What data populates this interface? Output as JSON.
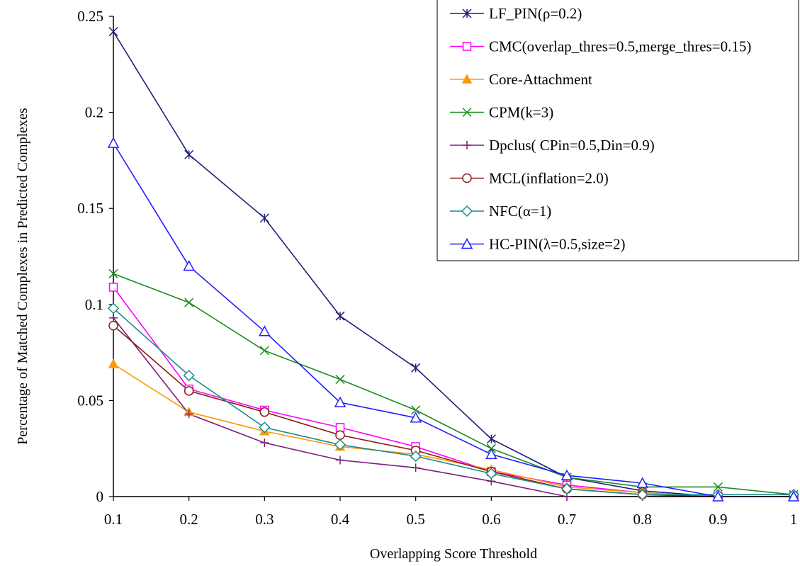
{
  "chart_data": {
    "type": "line",
    "title": "",
    "xlabel": "Overlapping Score Threshold",
    "ylabel": "Percentage of Matched Complexes in Predicted Complexes",
    "x": [
      0.1,
      0.2,
      0.3,
      0.4,
      0.5,
      0.6,
      0.7,
      0.8,
      0.9,
      1
    ],
    "x_tick_labels": [
      "0.1",
      "0.2",
      "0.3",
      "0.4",
      "0.5",
      "0.6",
      "0.7",
      "0.8",
      "0.9",
      "1"
    ],
    "ylim": [
      0,
      0.25
    ],
    "y_ticks": [
      0,
      0.05,
      0.1,
      0.15,
      0.2,
      0.25
    ],
    "y_tick_labels": [
      "0",
      "0.05",
      "0.1",
      "0.15",
      "0.2",
      "0.25"
    ],
    "grid": false,
    "legend_position": "top-right",
    "series": [
      {
        "name": "LF_PIN(ρ=0.2)",
        "color": "#1f1f7a",
        "marker": "asterisk",
        "values": [
          0.242,
          0.178,
          0.145,
          0.094,
          0.067,
          0.03,
          0.01,
          0.003,
          0.0,
          0.0
        ]
      },
      {
        "name": "CMC(overlap_thres=0.5,merge_thres=0.15)",
        "color": "#ff00ff",
        "marker": "square",
        "values": [
          0.109,
          0.056,
          0.045,
          0.036,
          0.026,
          0.013,
          0.006,
          0.002,
          0.0,
          0.0
        ]
      },
      {
        "name": "Core-Attachment",
        "color": "#ff9900",
        "marker": "filled-triangle",
        "values": [
          0.069,
          0.044,
          0.034,
          0.026,
          0.022,
          0.014,
          0.005,
          0.002,
          0.0,
          0.0
        ]
      },
      {
        "name": "CPM(k=3)",
        "color": "#1f8a1f",
        "marker": "x",
        "values": [
          0.116,
          0.101,
          0.076,
          0.061,
          0.045,
          0.025,
          0.01,
          0.005,
          0.005,
          0.001
        ]
      },
      {
        "name": "Dpclus( CPin=0.5,Din=0.9)",
        "color": "#7a1f7a",
        "marker": "plus",
        "values": [
          0.093,
          0.043,
          0.028,
          0.019,
          0.015,
          0.008,
          0.0,
          0.0,
          0.0,
          0.0
        ]
      },
      {
        "name": "MCL(inflation=2.0)",
        "color": "#8b1a1a",
        "marker": "circle",
        "values": [
          0.089,
          0.055,
          0.044,
          0.032,
          0.024,
          0.013,
          0.004,
          0.001,
          0.0,
          0.0
        ]
      },
      {
        "name": "NFC(α=1)",
        "color": "#1a8a8a",
        "marker": "diamond",
        "values": [
          0.098,
          0.063,
          0.036,
          0.027,
          0.021,
          0.012,
          0.004,
          0.001,
          0.001,
          0.001
        ]
      },
      {
        "name": "HC-PIN(λ=0.5,size=2)",
        "color": "#1f1fff",
        "marker": "triangle",
        "values": [
          0.184,
          0.12,
          0.086,
          0.049,
          0.041,
          0.022,
          0.011,
          0.007,
          0.0,
          0.0
        ]
      }
    ]
  }
}
